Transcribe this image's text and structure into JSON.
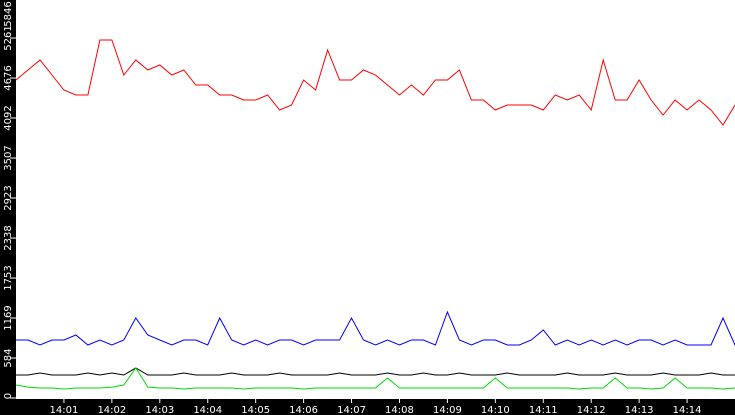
{
  "chart_data": {
    "type": "line",
    "title": "",
    "xlabel": "",
    "ylabel": "",
    "x_ticks": [
      "14:01",
      "14:02",
      "14:03",
      "14:04",
      "14:05",
      "14:06",
      "14:07",
      "14:08",
      "14:09",
      "14:10",
      "14:11",
      "14:12",
      "14:13",
      "14:14"
    ],
    "y_ticks": [
      "0",
      "584",
      "1169",
      "1753",
      "2338",
      "2923",
      "3507",
      "4092",
      "4676",
      "5261",
      "5846"
    ],
    "ylim": [
      0,
      5846
    ],
    "xlim": [
      "14:00:00",
      "14:15:00"
    ],
    "x_interval_seconds": 15,
    "grid": false,
    "series": [
      {
        "color": "#ff0000",
        "values": [
          4648,
          4794,
          4940,
          4721,
          4502,
          4428,
          4428,
          5232,
          5232,
          4721,
          4940,
          4794,
          4867,
          4721,
          4794,
          4575,
          4575,
          4428,
          4428,
          4355,
          4355,
          4428,
          4209,
          4282,
          4648,
          4502,
          5086,
          4648,
          4648,
          4794,
          4721,
          4575,
          4428,
          4575,
          4428,
          4648,
          4648,
          4794,
          4355,
          4355,
          4209,
          4282,
          4282,
          4282,
          4209,
          4428,
          4355,
          4428,
          4209,
          4940,
          4355,
          4355,
          4648,
          4355,
          4136,
          4355,
          4209,
          4355,
          4209,
          3990,
          4282
        ]
      },
      {
        "color": "#0000ff",
        "values": [
          848,
          848,
          775,
          848,
          848,
          921,
          775,
          848,
          775,
          848,
          1169,
          921,
          848,
          775,
          848,
          848,
          775,
          1169,
          848,
          775,
          848,
          775,
          848,
          848,
          775,
          848,
          848,
          848,
          1169,
          848,
          775,
          848,
          775,
          848,
          848,
          775,
          1257,
          848,
          775,
          848,
          848,
          775,
          775,
          848,
          994,
          775,
          848,
          775,
          848,
          775,
          848,
          775,
          848,
          848,
          775,
          848,
          775,
          775,
          775,
          1169,
          775
        ]
      },
      {
        "color": "#000000",
        "values": [
          336,
          336,
          365,
          336,
          336,
          336,
          365,
          336,
          365,
          336,
          438,
          336,
          336,
          336,
          365,
          336,
          336,
          336,
          365,
          336,
          336,
          336,
          365,
          336,
          336,
          336,
          336,
          365,
          336,
          336,
          336,
          365,
          336,
          336,
          365,
          336,
          336,
          365,
          336,
          336,
          336,
          365,
          336,
          336,
          336,
          336,
          365,
          336,
          336,
          336,
          365,
          336,
          336,
          336,
          365,
          336,
          336,
          336,
          365,
          336,
          336
        ]
      },
      {
        "color": "#00dd00",
        "values": [
          190,
          160,
          146,
          146,
          131,
          146,
          146,
          146,
          160,
          190,
          438,
          160,
          146,
          146,
          131,
          146,
          146,
          146,
          146,
          131,
          146,
          146,
          146,
          146,
          131,
          146,
          146,
          146,
          146,
          146,
          146,
          292,
          146,
          146,
          146,
          146,
          146,
          146,
          146,
          146,
          292,
          146,
          146,
          146,
          146,
          146,
          146,
          131,
          146,
          146,
          292,
          146,
          146,
          131,
          146,
          292,
          146,
          146,
          146,
          131,
          146
        ]
      }
    ]
  }
}
